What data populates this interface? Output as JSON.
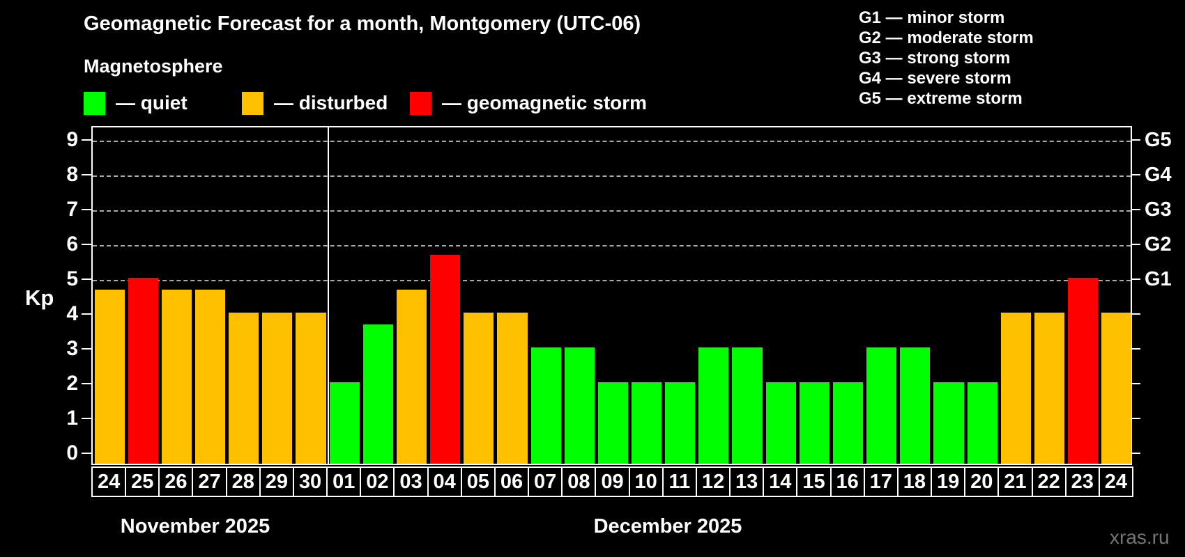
{
  "title": "Geomagnetic Forecast for a month, Montgomery (UTC-06)",
  "subtitle": "Magnetosphere",
  "legend": {
    "items": [
      {
        "label": "— quiet",
        "level": "quiet"
      },
      {
        "label": "— disturbed",
        "level": "disturbed"
      },
      {
        "label": "— geomagnetic storm",
        "level": "storm"
      }
    ]
  },
  "g_legend": [
    "G1 — minor storm",
    "G2 — moderate storm",
    "G3 — strong storm",
    "G4 — severe storm",
    "G5 — extreme storm"
  ],
  "axis": {
    "kp_label": "Kp",
    "kp_ticks": [
      0,
      1,
      2,
      3,
      4,
      5,
      6,
      7,
      8,
      9
    ],
    "g_ticks": [
      {
        "kp": 5,
        "label": "G1"
      },
      {
        "kp": 6,
        "label": "G2"
      },
      {
        "kp": 7,
        "label": "G3"
      },
      {
        "kp": 8,
        "label": "G4"
      },
      {
        "kp": 9,
        "label": "G5"
      }
    ]
  },
  "months": [
    {
      "label": "November 2025"
    },
    {
      "label": "December 2025"
    }
  ],
  "colors": {
    "background": "#000000",
    "text": "#ffffff",
    "grid": "#aaaaaa",
    "watermark": "#757575",
    "levels": {
      "quiet": "#00ff00",
      "disturbed": "#ffc000",
      "storm": "#ff0000"
    }
  },
  "watermark": "xras.ru",
  "chart_data": {
    "type": "bar",
    "title": "Geomagnetic Forecast for a month, Montgomery (UTC-06)",
    "xlabel": "",
    "ylabel": "Kp",
    "ylim": [
      0,
      9.4
    ],
    "grid": "horizontal dashed lines only at Kp 5,6,7,8,9 (G1–G5 storm levels)",
    "legend_position": "top-left (quiet/disturbed/storm), top-right (G1–G5 descriptions)",
    "right_axis_labels": {
      "G1": 5,
      "G2": 6,
      "G3": 7,
      "G4": 8,
      "G5": 9
    },
    "points": [
      {
        "month": "November 2025",
        "day": "24",
        "kp": 4.67,
        "level": "disturbed"
      },
      {
        "month": "November 2025",
        "day": "25",
        "kp": 5,
        "level": "storm"
      },
      {
        "month": "November 2025",
        "day": "26",
        "kp": 4.67,
        "level": "disturbed"
      },
      {
        "month": "November 2025",
        "day": "27",
        "kp": 4.67,
        "level": "disturbed"
      },
      {
        "month": "November 2025",
        "day": "28",
        "kp": 4,
        "level": "disturbed"
      },
      {
        "month": "November 2025",
        "day": "29",
        "kp": 4,
        "level": "disturbed"
      },
      {
        "month": "November 2025",
        "day": "30",
        "kp": 4,
        "level": "disturbed"
      },
      {
        "month": "December 2025",
        "day": "01",
        "kp": 2,
        "level": "quiet"
      },
      {
        "month": "December 2025",
        "day": "02",
        "kp": 3.67,
        "level": "quiet"
      },
      {
        "month": "December 2025",
        "day": "03",
        "kp": 4.67,
        "level": "disturbed"
      },
      {
        "month": "December 2025",
        "day": "04",
        "kp": 5.67,
        "level": "storm"
      },
      {
        "month": "December 2025",
        "day": "05",
        "kp": 4,
        "level": "disturbed"
      },
      {
        "month": "December 2025",
        "day": "06",
        "kp": 4,
        "level": "disturbed"
      },
      {
        "month": "December 2025",
        "day": "07",
        "kp": 3,
        "level": "quiet"
      },
      {
        "month": "December 2025",
        "day": "08",
        "kp": 3,
        "level": "quiet"
      },
      {
        "month": "December 2025",
        "day": "09",
        "kp": 2,
        "level": "quiet"
      },
      {
        "month": "December 2025",
        "day": "10",
        "kp": 2,
        "level": "quiet"
      },
      {
        "month": "December 2025",
        "day": "11",
        "kp": 2,
        "level": "quiet"
      },
      {
        "month": "December 2025",
        "day": "12",
        "kp": 3,
        "level": "quiet"
      },
      {
        "month": "December 2025",
        "day": "13",
        "kp": 3,
        "level": "quiet"
      },
      {
        "month": "December 2025",
        "day": "14",
        "kp": 2,
        "level": "quiet"
      },
      {
        "month": "December 2025",
        "day": "15",
        "kp": 2,
        "level": "quiet"
      },
      {
        "month": "December 2025",
        "day": "16",
        "kp": 2,
        "level": "quiet"
      },
      {
        "month": "December 2025",
        "day": "17",
        "kp": 3,
        "level": "quiet"
      },
      {
        "month": "December 2025",
        "day": "18",
        "kp": 3,
        "level": "quiet"
      },
      {
        "month": "December 2025",
        "day": "19",
        "kp": 2,
        "level": "quiet"
      },
      {
        "month": "December 2025",
        "day": "20",
        "kp": 2,
        "level": "quiet"
      },
      {
        "month": "December 2025",
        "day": "21",
        "kp": 4,
        "level": "disturbed"
      },
      {
        "month": "December 2025",
        "day": "22",
        "kp": 4,
        "level": "disturbed"
      },
      {
        "month": "December 2025",
        "day": "23",
        "kp": 5,
        "level": "storm"
      },
      {
        "month": "December 2025",
        "day": "24",
        "kp": 4,
        "level": "disturbed"
      }
    ]
  }
}
